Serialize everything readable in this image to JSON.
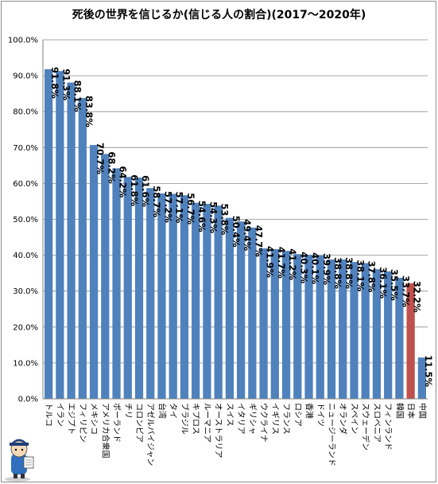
{
  "chart_data": {
    "type": "bar",
    "title": "死後の世界を信じるか(信じる人の割合)(2017～2020年)",
    "xlabel": "",
    "ylabel": "",
    "ylim": [
      0,
      100
    ],
    "ytick_step": 10,
    "ytick_format": "%.1f%",
    "grid": true,
    "legend": "none",
    "bar_color": "#4f81bd",
    "highlight_color": "#c0504d",
    "highlight_category": "日本",
    "categories": [
      "トルコ",
      "イラン",
      "エジプト",
      "フィリピン",
      "メキシコ",
      "アメリカ合衆国",
      "ポーランド",
      "チリ",
      "コロンビア",
      "アゼルバイジャン",
      "台湾",
      "タイ",
      "ブラジル",
      "キプロス",
      "ルーマニア",
      "オーストラリア",
      "スイス",
      "イタリア",
      "ギリシャ",
      "ウクライナ",
      "イギリス",
      "フランス",
      "ロシア",
      "香港",
      "ドイツ",
      "ニュージーランド",
      "オランダ",
      "スペイン",
      "スウェーデン",
      "スロベニア",
      "フィンランド",
      "韓国",
      "日本",
      "中国"
    ],
    "values": [
      91.8,
      91.3,
      88.1,
      83.8,
      70.7,
      68.2,
      64.2,
      61.8,
      61.6,
      58.7,
      57.2,
      57.1,
      56.7,
      54.6,
      54.3,
      53.8,
      50.4,
      49.4,
      47.7,
      41.9,
      41.7,
      41.2,
      40.3,
      40.1,
      39.9,
      38.8,
      38.8,
      38.1,
      37.8,
      36.1,
      35.5,
      33.7,
      32.2,
      11.5
    ],
    "data_labels": [
      "91.8%",
      "91.3%",
      "88.1%",
      "83.8%",
      "70.7%",
      "68.2%",
      "64.2%",
      "61.8%",
      "61.6%",
      "58.7%",
      "57.2%",
      "57.1%",
      "56.7%",
      "54.6%",
      "54.3%",
      "53.8%",
      "50.4%",
      "49.4%",
      "47.7%",
      "41.9%",
      "41.7%",
      "41.2%",
      "40.3%",
      "40.1%",
      "39.9%",
      "38.8%",
      "38.8%",
      "38.1%",
      "37.8%",
      "36.1%",
      "35.5%",
      "33.7%",
      "32.2%",
      "11.5%"
    ]
  },
  "mascot_icon": "reader-mascot-icon"
}
